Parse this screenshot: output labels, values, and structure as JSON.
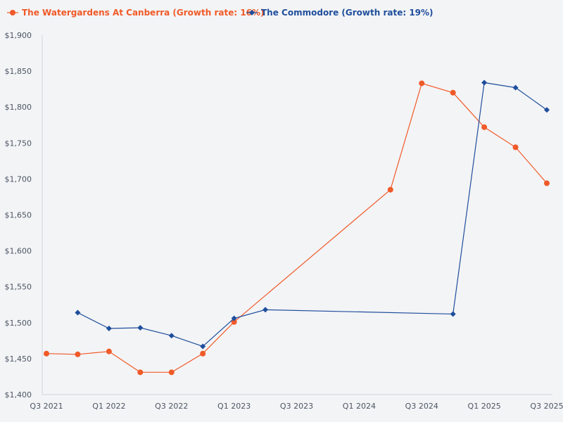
{
  "chart_data": {
    "type": "line",
    "title": "",
    "xlabel": "",
    "ylabel": "",
    "x_ticks": [
      "Q3 2021",
      "Q1 2022",
      "Q3 2022",
      "Q1 2023",
      "Q3 2023",
      "Q1 2024",
      "Q3 2024",
      "Q1 2025",
      "Q3 2025"
    ],
    "x_range": [
      0,
      16
    ],
    "y_ticks": [
      1400,
      1450,
      1500,
      1550,
      1600,
      1650,
      1700,
      1750,
      1800,
      1850,
      1900
    ],
    "y_tick_labels": [
      "$1,400",
      "$1,450",
      "$1,500",
      "$1,550",
      "$1,600",
      "$1,650",
      "$1,700",
      "$1,750",
      "$1,800",
      "$1,850",
      "$1,900"
    ],
    "ylim": [
      1400,
      1900
    ],
    "grid": false,
    "legend_position": "top-left",
    "series": [
      {
        "name": "The Watergardens At Canberra (Growth rate: 16%)",
        "color": "#f05a28",
        "marker": "circle",
        "points": [
          {
            "x": 0,
            "y": 1457
          },
          {
            "x": 1,
            "y": 1456
          },
          {
            "x": 2,
            "y": 1460
          },
          {
            "x": 3,
            "y": 1431
          },
          {
            "x": 4,
            "y": 1431
          },
          {
            "x": 5,
            "y": 1457
          },
          {
            "x": 6,
            "y": 1501
          },
          {
            "x": 11,
            "y": 1685
          },
          {
            "x": 12,
            "y": 1833
          },
          {
            "x": 13,
            "y": 1820
          },
          {
            "x": 14,
            "y": 1772
          },
          {
            "x": 15,
            "y": 1744
          },
          {
            "x": 16,
            "y": 1694
          }
        ]
      },
      {
        "name": "The Commodore (Growth rate: 19%)",
        "color": "#1f4e9c",
        "marker": "diamond",
        "points": [
          {
            "x": 1,
            "y": 1514
          },
          {
            "x": 2,
            "y": 1492
          },
          {
            "x": 3,
            "y": 1493
          },
          {
            "x": 4,
            "y": 1482
          },
          {
            "x": 5,
            "y": 1467
          },
          {
            "x": 6,
            "y": 1506
          },
          {
            "x": 7,
            "y": 1518
          },
          {
            "x": 13,
            "y": 1512
          },
          {
            "x": 14,
            "y": 1834
          },
          {
            "x": 15,
            "y": 1827
          },
          {
            "x": 16,
            "y": 1796
          }
        ]
      }
    ]
  }
}
